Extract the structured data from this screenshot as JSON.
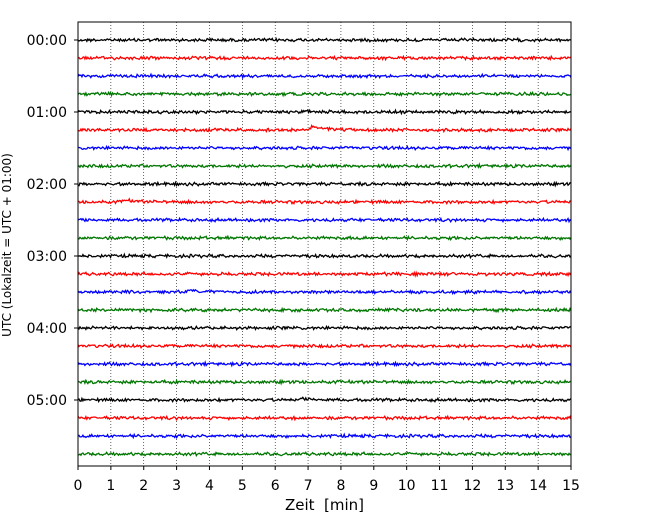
{
  "chart_data": {
    "type": "line",
    "title": "",
    "xlabel": "Zeit  [min]",
    "ylabel": "UTC (Lokalzeit = UTC + 01:00)",
    "xlim": [
      0,
      15
    ],
    "x_ticks": [
      "0",
      "1",
      "2",
      "3",
      "4",
      "5",
      "6",
      "7",
      "8",
      "9",
      "10",
      "11",
      "12",
      "13",
      "14",
      "15"
    ],
    "grid": "vertical dotted",
    "trace_interval_min": 15,
    "y_tick_labels": [
      "00:00",
      "01:00",
      "02:00",
      "03:00",
      "04:00",
      "05:00"
    ],
    "trace_colors": [
      "#000000",
      "#ff0000",
      "#0000ff",
      "#007700"
    ],
    "series": [
      {
        "start": "00:00",
        "color": "#000000",
        "events": []
      },
      {
        "start": "00:15",
        "color": "#ff0000",
        "events": []
      },
      {
        "start": "00:30",
        "color": "#0000ff",
        "events": []
      },
      {
        "start": "00:45",
        "color": "#007700",
        "events": []
      },
      {
        "start": "01:00",
        "color": "#000000",
        "events": [
          {
            "t": 6.9,
            "amp": 1.0
          }
        ]
      },
      {
        "start": "01:15",
        "color": "#ff0000",
        "events": [
          {
            "t": 7.1,
            "amp": 3.5
          }
        ]
      },
      {
        "start": "01:30",
        "color": "#0000ff",
        "events": []
      },
      {
        "start": "01:45",
        "color": "#007700",
        "events": []
      },
      {
        "start": "02:00",
        "color": "#000000",
        "events": []
      },
      {
        "start": "02:15",
        "color": "#ff0000",
        "events": [
          {
            "t": 1.4,
            "amp": 2.0
          }
        ]
      },
      {
        "start": "02:30",
        "color": "#0000ff",
        "events": []
      },
      {
        "start": "02:45",
        "color": "#007700",
        "events": []
      },
      {
        "start": "03:00",
        "color": "#000000",
        "events": []
      },
      {
        "start": "03:15",
        "color": "#ff0000",
        "events": []
      },
      {
        "start": "03:30",
        "color": "#0000ff",
        "events": [
          {
            "t": 3.3,
            "amp": 1.5
          }
        ]
      },
      {
        "start": "03:45",
        "color": "#007700",
        "events": []
      },
      {
        "start": "04:00",
        "color": "#000000",
        "events": []
      },
      {
        "start": "04:15",
        "color": "#ff0000",
        "events": []
      },
      {
        "start": "04:30",
        "color": "#0000ff",
        "events": []
      },
      {
        "start": "04:45",
        "color": "#007700",
        "events": []
      },
      {
        "start": "05:00",
        "color": "#000000",
        "events": [
          {
            "t": 6.8,
            "amp": 1.5
          }
        ]
      },
      {
        "start": "05:15",
        "color": "#ff0000",
        "events": []
      },
      {
        "start": "05:30",
        "color": "#0000ff",
        "events": []
      },
      {
        "start": "05:45",
        "color": "#007700",
        "events": []
      }
    ]
  }
}
